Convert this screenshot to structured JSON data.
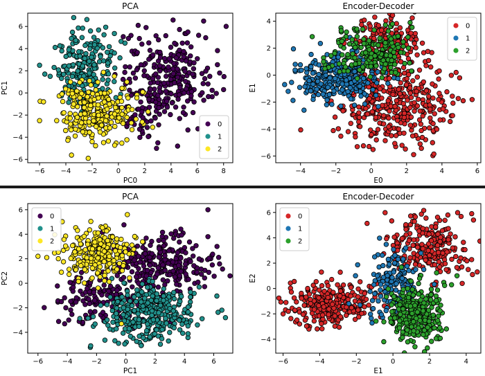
{
  "figure": {
    "divider_color": "#1a1a1a"
  },
  "chart_data": [
    {
      "type": "scatter",
      "id": "pca-top",
      "title": "PCA",
      "xlabel": "PC0",
      "ylabel": "PC1",
      "xlim": [
        -6.9,
        8.7
      ],
      "ylim": [
        -6.3,
        7.2
      ],
      "xticks": [
        -6,
        -4,
        -2,
        0,
        2,
        4,
        6,
        8
      ],
      "yticks": [
        -6,
        -4,
        -2,
        0,
        2,
        4,
        6
      ],
      "grid": false,
      "legend_position": "lower-right",
      "series": [
        {
          "name": "0",
          "color": "#440154",
          "clusters": [
            {
              "cx": 3.6,
              "cy": 1.4,
              "sx": 1.7,
              "sy": 1.9,
              "n": 260
            },
            {
              "cx": 1.8,
              "cy": -2.2,
              "sx": 0.9,
              "sy": 1.0,
              "n": 40
            }
          ],
          "points": [
            [
              2.1,
              5.9
            ],
            [
              6.1,
              5.2
            ],
            [
              7.7,
              1.8
            ],
            [
              8.0,
              0.3
            ],
            [
              4.5,
              -4.8
            ],
            [
              2.9,
              -5.0
            ],
            [
              3.0,
              -4.5
            ],
            [
              1.5,
              6.1
            ]
          ]
        },
        {
          "name": "1",
          "color": "#21918c",
          "clusters": [
            {
              "cx": -2.6,
              "cy": 2.5,
              "sx": 1.1,
              "sy": 1.6,
              "n": 210
            }
          ],
          "points": [
            [
              -3.4,
              6.8
            ],
            [
              -6.0,
              2.5
            ],
            [
              -5.6,
              1.7
            ],
            [
              0.5,
              4.5
            ],
            [
              -0.3,
              3.6
            ]
          ]
        },
        {
          "name": "2",
          "color": "#fde725",
          "clusters": [
            {
              "cx": -1.8,
              "cy": -1.7,
              "sx": 1.5,
              "sy": 1.3,
              "n": 260
            }
          ],
          "points": [
            [
              -6.0,
              -2.5
            ],
            [
              -5.7,
              -0.8
            ],
            [
              -2.3,
              -5.9
            ],
            [
              -2.0,
              -4.4
            ],
            [
              2.6,
              -3.1
            ]
          ]
        }
      ]
    },
    {
      "type": "scatter",
      "id": "encdec-top",
      "title": "Encoder-Decoder",
      "xlabel": "E0",
      "ylabel": "E1",
      "xlim": [
        -5.4,
        6.2
      ],
      "ylim": [
        -6.5,
        4.6
      ],
      "xticks": [
        -4,
        -2,
        0,
        2,
        4,
        6
      ],
      "yticks": [
        -6,
        -4,
        -2,
        0,
        2,
        4
      ],
      "grid": false,
      "legend_position": "upper-right",
      "series": [
        {
          "name": "0",
          "color": "#d62728",
          "clusters": [
            {
              "cx": 0.8,
              "cy": 2.3,
              "sx": 1.0,
              "sy": 1.0,
              "n": 170
            },
            {
              "cx": 1.3,
              "cy": -2.2,
              "sx": 1.6,
              "sy": 1.5,
              "n": 360
            }
          ],
          "points": [
            [
              0.2,
              4.3
            ],
            [
              2.4,
              -5.9
            ],
            [
              4.6,
              -3.0
            ],
            [
              5.2,
              -1.9
            ],
            [
              4.8,
              0.2
            ],
            [
              -1.8,
              -2.4
            ],
            [
              5.0,
              -0.2
            ]
          ]
        },
        {
          "name": "1",
          "color": "#1f77b4",
          "clusters": [
            {
              "cx": -1.9,
              "cy": -0.3,
              "sx": 1.2,
              "sy": 0.85,
              "n": 300
            }
          ],
          "points": [
            [
              -4.7,
              -1.2
            ],
            [
              -4.9,
              -0.7
            ],
            [
              -3.8,
              -2.6
            ],
            [
              -1.2,
              2.8
            ],
            [
              -4.3,
              0.8
            ]
          ]
        },
        {
          "name": "2",
          "color": "#2ca02c",
          "clusters": [
            {
              "cx": 0.1,
              "cy": 1.6,
              "sx": 1.2,
              "sy": 0.9,
              "n": 190
            }
          ],
          "points": [
            [
              -1.4,
              3.2
            ],
            [
              -1.7,
              3.3
            ],
            [
              2.2,
              3.9
            ],
            [
              -2.7,
              1.0
            ],
            [
              1.2,
              3.8
            ]
          ]
        }
      ]
    },
    {
      "type": "scatter",
      "id": "pca-bottom",
      "title": "PCA",
      "xlabel": "PC1",
      "ylabel": "PC2",
      "xlim": [
        -6.7,
        7.3
      ],
      "ylim": [
        -5.7,
        6.5
      ],
      "xticks": [
        -6,
        -4,
        -2,
        0,
        2,
        4,
        6
      ],
      "yticks": [
        -4,
        -2,
        0,
        2,
        4,
        6
      ],
      "grid": false,
      "legend_position": "upper-left",
      "series": [
        {
          "name": "0",
          "color": "#440154",
          "clusters": [
            {
              "cx": 2.6,
              "cy": 1.7,
              "sx": 1.7,
              "sy": 1.1,
              "n": 250
            },
            {
              "cx": -1.5,
              "cy": -1.2,
              "sx": 1.6,
              "sy": 1.0,
              "n": 150
            }
          ],
          "points": [
            [
              5.6,
              6.0
            ],
            [
              -4.4,
              -1.5
            ],
            [
              -3.9,
              -3.0
            ],
            [
              5.6,
              3.8
            ],
            [
              -4.1,
              -2.0
            ]
          ]
        },
        {
          "name": "1",
          "color": "#21918c",
          "clusters": [
            {
              "cx": 1.6,
              "cy": -2.4,
              "sx": 1.6,
              "sy": 1.2,
              "n": 340
            }
          ],
          "points": [
            [
              6.8,
              -2.8
            ],
            [
              -2.4,
              -5.1
            ],
            [
              5.0,
              -0.3
            ],
            [
              -0.5,
              -4.9
            ]
          ]
        },
        {
          "name": "2",
          "color": "#fde725",
          "clusters": [
            {
              "cx": -1.9,
              "cy": 2.4,
              "sx": 1.1,
              "sy": 1.0,
              "n": 260
            }
          ],
          "points": [
            [
              -6.0,
              2.2
            ],
            [
              0.1,
              5.6
            ],
            [
              -5.4,
              2.1
            ],
            [
              -0.3,
              -3.3
            ],
            [
              -4.4,
              0.9
            ]
          ]
        }
      ]
    },
    {
      "type": "scatter",
      "id": "encdec-bottom",
      "title": "Encoder-Decoder",
      "xlabel": "E1",
      "ylabel": "E2",
      "xlim": [
        -6.4,
        4.8
      ],
      "ylim": [
        -5.1,
        6.7
      ],
      "xticks": [
        -6,
        -4,
        -2,
        0,
        2,
        4
      ],
      "yticks": [
        -4,
        -2,
        0,
        2,
        4,
        6
      ],
      "grid": false,
      "legend_position": "upper-left",
      "series": [
        {
          "name": "0",
          "color": "#d62728",
          "clusters": [
            {
              "cx": -3.4,
              "cy": -1.2,
              "sx": 1.3,
              "sy": 0.85,
              "n": 280
            },
            {
              "cx": 2.0,
              "cy": 3.2,
              "sx": 1.1,
              "sy": 1.2,
              "n": 230
            }
          ],
          "points": [
            [
              4.3,
              5.9
            ],
            [
              -6.0,
              -2.0
            ],
            [
              -5.1,
              -2.8
            ],
            [
              3.0,
              5.8
            ],
            [
              4.4,
              5.4
            ]
          ]
        },
        {
          "name": "1",
          "color": "#1f77b4",
          "clusters": [
            {
              "cx": 0.0,
              "cy": 0.5,
              "sx": 0.7,
              "sy": 1.3,
              "n": 150
            }
          ],
          "points": [
            [
              -1.0,
              2.5
            ],
            [
              -1.8,
              -1.3
            ],
            [
              0.7,
              3.2
            ]
          ]
        },
        {
          "name": "2",
          "color": "#2ca02c",
          "clusters": [
            {
              "cx": 1.2,
              "cy": -2.0,
              "sx": 0.8,
              "sy": 1.2,
              "n": 300
            }
          ],
          "points": [
            [
              1.2,
              -4.6
            ],
            [
              3.5,
              1.0
            ],
            [
              3.2,
              0.3
            ],
            [
              -0.5,
              -4.2
            ]
          ]
        }
      ]
    }
  ]
}
